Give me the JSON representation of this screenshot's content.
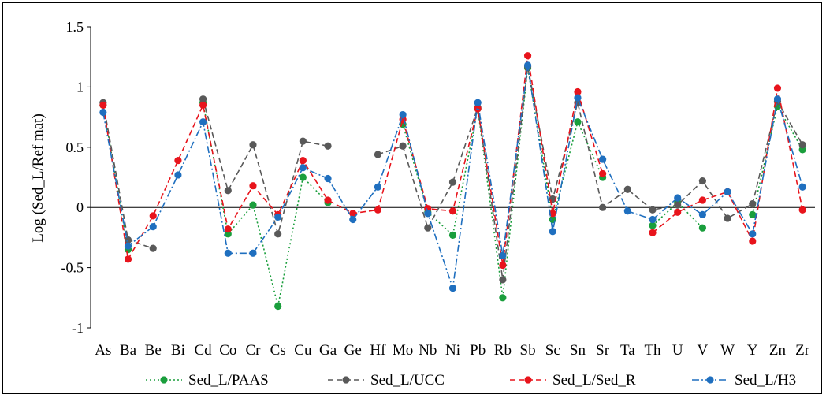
{
  "chart_data": {
    "type": "line",
    "ylabel": "Log (Sed_L/Ref mat)",
    "xlabel": "",
    "ylim": [
      -1,
      1.5
    ],
    "yticks": [
      -1,
      -0.5,
      0,
      0.5,
      1,
      1.5
    ],
    "ytick_labels": [
      "-1",
      "-0.5",
      "0",
      "0.5",
      "1",
      "1.5"
    ],
    "grid": false,
    "legend_position": "bottom",
    "categories": [
      "As",
      "Ba",
      "Be",
      "Bi",
      "Cd",
      "Co",
      "Cr",
      "Cs",
      "Cu",
      "Ga",
      "Ge",
      "Hf",
      "Mo",
      "Nb",
      "Ni",
      "Pb",
      "Rb",
      "Sb",
      "Sc",
      "Sn",
      "Sr",
      "Ta",
      "Th",
      "U",
      "V",
      "W",
      "Y",
      "Zn",
      "Zr"
    ],
    "series": [
      {
        "name": "Sed_L/PAAS",
        "color": "#1a9e3c",
        "dash": "dotted",
        "values": [
          0.85,
          -0.35,
          null,
          null,
          0.87,
          -0.22,
          0.02,
          -0.82,
          0.25,
          0.04,
          null,
          null,
          0.69,
          -0.04,
          -0.23,
          0.82,
          -0.75,
          1.16,
          -0.1,
          0.71,
          0.25,
          null,
          -0.15,
          0.04,
          -0.17,
          null,
          -0.06,
          0.84,
          0.48
        ]
      },
      {
        "name": "Sed_L/UCC",
        "color": "#595959",
        "dash": "dashed",
        "values": [
          0.87,
          -0.27,
          -0.34,
          null,
          0.9,
          0.14,
          0.52,
          -0.22,
          0.55,
          0.51,
          null,
          0.44,
          0.51,
          -0.17,
          0.21,
          0.83,
          -0.6,
          1.17,
          0.07,
          0.87,
          0.0,
          0.15,
          -0.02,
          0.02,
          0.22,
          -0.09,
          0.03,
          0.88,
          0.52
        ]
      },
      {
        "name": "Sed_L/Sed_R",
        "color": "#e8141c",
        "dash": "dashed",
        "values": [
          0.85,
          -0.43,
          -0.07,
          0.39,
          0.85,
          -0.18,
          0.18,
          -0.06,
          0.39,
          0.06,
          -0.05,
          -0.02,
          0.73,
          -0.01,
          -0.03,
          0.82,
          -0.48,
          1.26,
          -0.05,
          0.96,
          0.28,
          null,
          -0.21,
          -0.04,
          0.06,
          0.13,
          -0.28,
          0.99,
          -0.02
        ]
      },
      {
        "name": "Sed_L/H3",
        "color": "#1f6fbf",
        "dash": "dashdot",
        "values": [
          0.79,
          -0.32,
          -0.16,
          0.27,
          0.71,
          -0.38,
          -0.38,
          -0.08,
          0.33,
          0.24,
          -0.1,
          0.17,
          0.77,
          -0.05,
          -0.67,
          0.87,
          -0.4,
          1.18,
          -0.2,
          0.91,
          0.4,
          -0.03,
          -0.1,
          0.08,
          -0.06,
          0.13,
          -0.22,
          0.9,
          0.17
        ]
      }
    ]
  }
}
